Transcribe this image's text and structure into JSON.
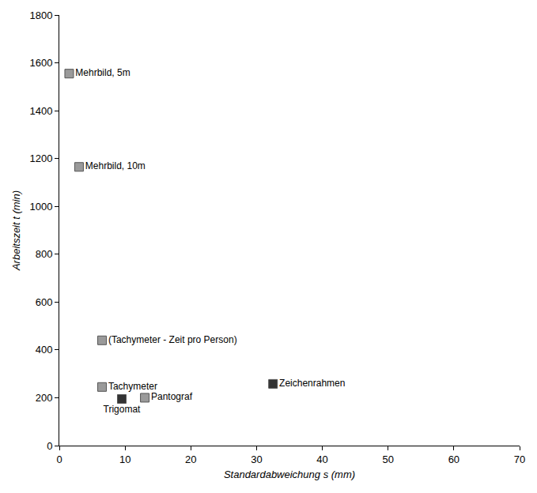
{
  "chart_data": {
    "type": "scatter",
    "x_label": "Standardabweichung s (mm)",
    "y_label": "Arbeitszeit t (min)",
    "labels": [
      "Mehrbild, 5m",
      "Mehrbild, 10m",
      "(Tachymeter - Zeit pro Person)",
      "Tachymeter",
      "Trigomat",
      "Pantograf",
      "Zeichenrahmen"
    ],
    "x": [
      1.5,
      3,
      6.5,
      6.5,
      9.5,
      13,
      32.5
    ],
    "values": [
      1555,
      1165,
      440,
      245,
      195,
      200,
      258
    ],
    "colors": [
      "#9a9a9a",
      "#9a9a9a",
      "#9a9a9a",
      "#9a9a9a",
      "#333333",
      "#9a9a9a",
      "#333333"
    ],
    "marker": "square",
    "xlim": [
      0,
      70
    ],
    "xticks": [
      0,
      10,
      20,
      30,
      40,
      50,
      60,
      70
    ],
    "ylim": [
      0,
      1800
    ],
    "yticks": [
      0,
      200,
      400,
      600,
      800,
      1000,
      1200,
      1400,
      1600,
      1800
    ],
    "grid": false
  }
}
